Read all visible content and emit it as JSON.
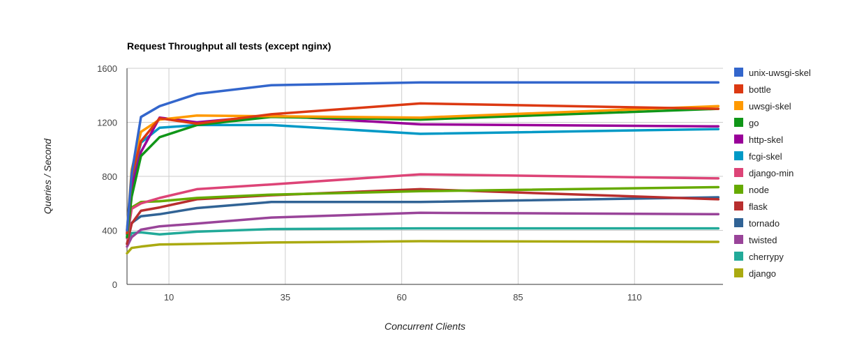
{
  "chart_data": {
    "type": "line",
    "title": "Request Throughput all tests (except nginx)",
    "xlabel": "Concurrent Clients",
    "ylabel": "Queries / Second",
    "xlim": [
      1,
      129
    ],
    "ylim": [
      0,
      1600
    ],
    "x_ticks": [
      10,
      35,
      60,
      85,
      110
    ],
    "y_ticks": [
      0,
      400,
      800,
      1200,
      1600
    ],
    "grid": true,
    "legend_position": "right",
    "x": [
      1,
      2,
      4,
      8,
      16,
      32,
      64,
      128
    ],
    "series": [
      {
        "name": "unix-uwsgi-skel",
        "color": "#3366cc",
        "values": [
          400,
          820,
          1240,
          1320,
          1410,
          1475,
          1495,
          1495
        ]
      },
      {
        "name": "bottle",
        "color": "#dc3912",
        "values": [
          380,
          800,
          1060,
          1230,
          1190,
          1260,
          1340,
          1300
        ]
      },
      {
        "name": "uwsgi-skel",
        "color": "#ff9900",
        "values": [
          400,
          850,
          1130,
          1220,
          1250,
          1245,
          1235,
          1320
        ]
      },
      {
        "name": "go",
        "color": "#109618",
        "values": [
          350,
          650,
          950,
          1090,
          1180,
          1240,
          1220,
          1300
        ]
      },
      {
        "name": "http-skel",
        "color": "#990099",
        "values": [
          370,
          720,
          980,
          1235,
          1200,
          1250,
          1185,
          1170
        ]
      },
      {
        "name": "fcgi-skel",
        "color": "#0099c6",
        "values": [
          380,
          780,
          1050,
          1160,
          1180,
          1180,
          1115,
          1150
        ]
      },
      {
        "name": "django-min",
        "color": "#dd4477",
        "values": [
          340,
          560,
          600,
          640,
          705,
          740,
          815,
          785
        ]
      },
      {
        "name": "node",
        "color": "#66aa00",
        "values": [
          350,
          570,
          610,
          615,
          640,
          665,
          690,
          720
        ]
      },
      {
        "name": "flask",
        "color": "#b82e2e",
        "values": [
          300,
          450,
          545,
          570,
          630,
          660,
          705,
          630
        ]
      },
      {
        "name": "tornado",
        "color": "#316395",
        "values": [
          300,
          455,
          505,
          520,
          565,
          610,
          610,
          645
        ]
      },
      {
        "name": "twisted",
        "color": "#994499",
        "values": [
          280,
          350,
          405,
          430,
          450,
          495,
          530,
          520
        ]
      },
      {
        "name": "cherrypy",
        "color": "#22aa99",
        "values": [
          300,
          380,
          385,
          370,
          390,
          410,
          415,
          415
        ]
      },
      {
        "name": "django",
        "color": "#aaaa11",
        "values": [
          230,
          270,
          280,
          295,
          300,
          310,
          320,
          315
        ]
      }
    ]
  },
  "colors": {
    "grid": "#cccccc",
    "axis": "#333333",
    "background": "#ffffff"
  }
}
